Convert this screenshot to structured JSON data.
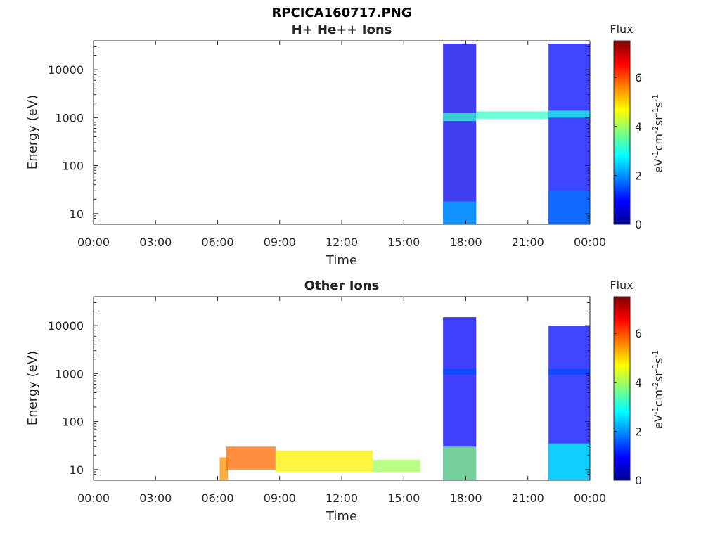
{
  "figure": {
    "title_line1": "RPCICA160717.PNG"
  },
  "colorbar": {
    "label": "Flux",
    "ticks": [
      "0",
      "2",
      "4",
      "6"
    ]
  },
  "chart_data": [
    {
      "type": "heatmap",
      "title": "H+ He++ Ions",
      "xlabel": "Time",
      "ylabel": "Energy (eV)",
      "x_tick_labels": [
        "00:00",
        "03:00",
        "06:00",
        "09:00",
        "12:00",
        "15:00",
        "18:00",
        "21:00",
        "00:00"
      ],
      "x_range_hours": [
        0,
        24
      ],
      "y_scale": "log",
      "y_tick_labels": [
        "10",
        "100",
        "1000",
        "10000"
      ],
      "y_range": [
        6,
        40000
      ],
      "colorbar_label": "Flux",
      "colorbar_range": [
        0,
        7.5
      ],
      "blocks": [
        {
          "t0": 16.9,
          "t1": 18.5,
          "e0": 6,
          "e1": 35000,
          "flux": 0.8
        },
        {
          "t0": 16.9,
          "t1": 18.5,
          "e0": 6,
          "e1": 18,
          "flux": 2.2
        },
        {
          "t0": 16.9,
          "t1": 18.5,
          "e0": 850,
          "e1": 1250,
          "flux": 3.2
        },
        {
          "t0": 18.5,
          "t1": 22.0,
          "e0": 950,
          "e1": 1350,
          "flux": 3.2
        },
        {
          "t0": 22.0,
          "t1": 24.0,
          "e0": 6,
          "e1": 35000,
          "flux": 1.0
        },
        {
          "t0": 22.0,
          "t1": 24.0,
          "e0": 6,
          "e1": 30,
          "flux": 1.8
        },
        {
          "t0": 22.0,
          "t1": 24.0,
          "e0": 1000,
          "e1": 1400,
          "flux": 3.0
        }
      ]
    },
    {
      "type": "heatmap",
      "title": "Other Ions",
      "xlabel": "Time",
      "ylabel": "Energy (eV)",
      "x_tick_labels": [
        "00:00",
        "03:00",
        "06:00",
        "09:00",
        "12:00",
        "15:00",
        "18:00",
        "21:00",
        "00:00"
      ],
      "x_range_hours": [
        0,
        24
      ],
      "y_scale": "log",
      "y_tick_labels": [
        "10",
        "100",
        "1000",
        "10000"
      ],
      "y_range": [
        6,
        40000
      ],
      "colorbar_label": "Flux",
      "colorbar_range": [
        0,
        7.5
      ],
      "blocks": [
        {
          "t0": 6.1,
          "t1": 6.5,
          "e0": 6,
          "e1": 18,
          "flux": 5.5
        },
        {
          "t0": 6.4,
          "t1": 8.8,
          "e0": 10,
          "e1": 30,
          "flux": 5.8
        },
        {
          "t0": 8.8,
          "t1": 13.5,
          "e0": 9,
          "e1": 25,
          "flux": 4.8
        },
        {
          "t0": 13.5,
          "t1": 15.8,
          "e0": 9,
          "e1": 16,
          "flux": 4.0
        },
        {
          "t0": 16.9,
          "t1": 18.5,
          "e0": 6,
          "e1": 15000,
          "flux": 0.9
        },
        {
          "t0": 16.9,
          "t1": 18.5,
          "e0": 6,
          "e1": 30,
          "flux": 3.8
        },
        {
          "t0": 16.9,
          "t1": 18.5,
          "e0": 950,
          "e1": 1250,
          "flux": 1.5
        },
        {
          "t0": 22.0,
          "t1": 24.0,
          "e0": 6,
          "e1": 10000,
          "flux": 1.0
        },
        {
          "t0": 22.0,
          "t1": 24.0,
          "e0": 6,
          "e1": 35,
          "flux": 2.8
        },
        {
          "t0": 22.0,
          "t1": 24.0,
          "e0": 950,
          "e1": 1250,
          "flux": 1.5
        }
      ]
    }
  ]
}
